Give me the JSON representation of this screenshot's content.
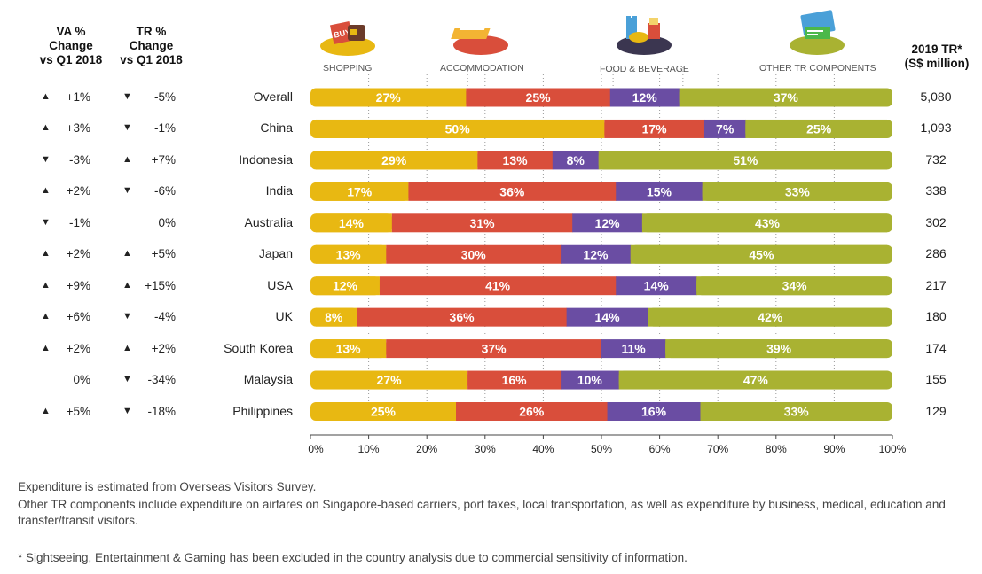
{
  "headers": {
    "va": [
      "VA %",
      "Change",
      "vs Q1 2018"
    ],
    "tr": [
      "TR %",
      "Change",
      "vs Q1 2018"
    ],
    "total": [
      "2019 TR*",
      "(S$ million)"
    ]
  },
  "category_labels": [
    "SHOPPING",
    "ACCOMMODATION",
    "FOOD & BEVERAGE",
    "OTHER TR COMPONENTS"
  ],
  "colors": {
    "shopping": "#E8B812",
    "accommodation": "#D94E3B",
    "food_beverage": "#6A4DA3",
    "other": "#A9B232"
  },
  "rows": [
    {
      "country": "Overall",
      "va_dir": "up",
      "va": "+1%",
      "tr_dir": "down",
      "tr": "-5%",
      "total": "5,080"
    },
    {
      "country": "China",
      "va_dir": "up",
      "va": "+3%",
      "tr_dir": "down",
      "tr": "-1%",
      "total": "1,093"
    },
    {
      "country": "Indonesia",
      "va_dir": "down",
      "va": "-3%",
      "tr_dir": "up",
      "tr": "+7%",
      "total": "732"
    },
    {
      "country": "India",
      "va_dir": "up",
      "va": "+2%",
      "tr_dir": "down",
      "tr": "-6%",
      "total": "338"
    },
    {
      "country": "Australia",
      "va_dir": "down",
      "va": "-1%",
      "tr_dir": "none",
      "tr": "0%",
      "total": "302"
    },
    {
      "country": "Japan",
      "va_dir": "up",
      "va": "+2%",
      "tr_dir": "up",
      "tr": "+5%",
      "total": "286"
    },
    {
      "country": "USA",
      "va_dir": "up",
      "va": "+9%",
      "tr_dir": "up",
      "tr": "+15%",
      "total": "217"
    },
    {
      "country": "UK",
      "va_dir": "up",
      "va": "+6%",
      "tr_dir": "down",
      "tr": "-4%",
      "total": "180"
    },
    {
      "country": "South Korea",
      "va_dir": "up",
      "va": "+2%",
      "tr_dir": "up",
      "tr": "+2%",
      "total": "174"
    },
    {
      "country": "Malaysia",
      "va_dir": "none",
      "va": "0%",
      "tr_dir": "down",
      "tr": "-34%",
      "total": "155"
    },
    {
      "country": "Philippines",
      "va_dir": "up",
      "va": "+5%",
      "tr_dir": "down",
      "tr": "-18%",
      "total": "129"
    }
  ],
  "chart_data": {
    "type": "bar",
    "stacked": true,
    "orientation": "horizontal",
    "categories": [
      "Overall",
      "China",
      "Indonesia",
      "India",
      "Australia",
      "Japan",
      "USA",
      "UK",
      "South Korea",
      "Malaysia",
      "Philippines"
    ],
    "series": [
      {
        "name": "SHOPPING",
        "values": [
          27,
          50,
          29,
          17,
          14,
          13,
          12,
          8,
          13,
          27,
          25
        ]
      },
      {
        "name": "ACCOMMODATION",
        "values": [
          25,
          17,
          13,
          36,
          31,
          30,
          41,
          36,
          37,
          16,
          26
        ]
      },
      {
        "name": "FOOD & BEVERAGE",
        "values": [
          12,
          7,
          8,
          15,
          12,
          12,
          14,
          14,
          11,
          10,
          16
        ]
      },
      {
        "name": "OTHER TR COMPONENTS",
        "values": [
          37,
          25,
          51,
          33,
          43,
          45,
          34,
          42,
          39,
          47,
          33
        ]
      }
    ],
    "xlim": [
      0,
      100
    ],
    "xticks": [
      "0%",
      "10%",
      "20%",
      "30%",
      "40%",
      "50%",
      "60%",
      "70%",
      "80%",
      "90%",
      "100%"
    ],
    "grid": true
  },
  "icons": [
    "shopping-bag-icon",
    "bed-icon",
    "food-drink-icon",
    "credit-card-icon"
  ],
  "footnotes": [
    "Expenditure is estimated from Overseas Visitors Survey.",
    "Other TR components include expenditure on airfares on Singapore-based carriers, port taxes, local transportation, as well as expenditure by business, medical, education and transfer/transit visitors.",
    "* Sightseeing, Entertainment & Gaming has been excluded in the country analysis due to commercial sensitivity of information."
  ]
}
